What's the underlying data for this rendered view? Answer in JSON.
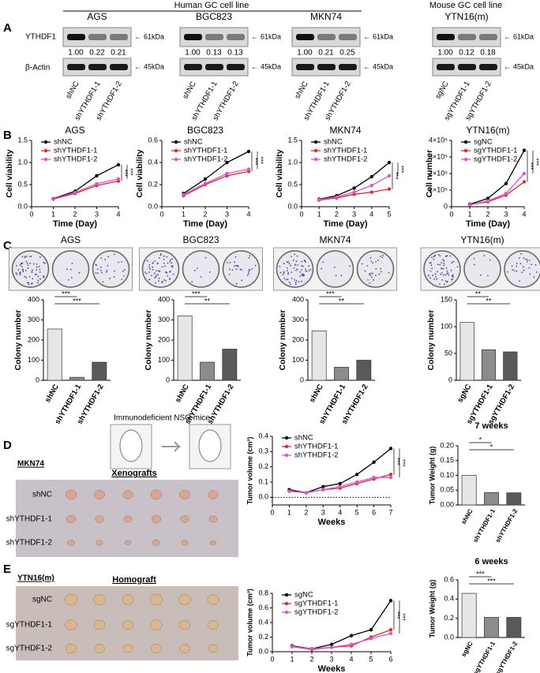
{
  "panel_letters": [
    "A",
    "B",
    "C",
    "D",
    "E"
  ],
  "blots": {
    "human_header": "Human GC cell line",
    "mouse_header": "Mouse GC cell line",
    "row_labels": [
      "YTHDF1",
      "β-Actin"
    ],
    "markers": [
      "61kDa",
      "45kDa"
    ],
    "groups": [
      {
        "name": "AGS",
        "lanes": [
          "shNC",
          "shYTHDF1-1",
          "shYTHDF1-2"
        ],
        "ratios": [
          "1.00",
          "0.22",
          "0.21"
        ]
      },
      {
        "name": "BGC823",
        "lanes": [
          "shNC",
          "shYTHDF1-1",
          "shYTHDF1-2"
        ],
        "ratios": [
          "1.00",
          "0.13",
          "0.13"
        ]
      },
      {
        "name": "MKN74",
        "lanes": [
          "shNC",
          "shYTHDF1-1",
          "shYTHDF1-2"
        ],
        "ratios": [
          "1.00",
          "0.21",
          "0.25"
        ]
      },
      {
        "name": "YTN16(m)",
        "lanes": [
          "sgNC",
          "sgYTHDF1-1",
          "sgYTHDF1-2"
        ],
        "ratios": [
          "1.00",
          "0.12",
          "0.18"
        ]
      }
    ]
  },
  "xenograft": {
    "mice_label": "Immunodeficient NSG mice",
    "cell_line": "MKN74",
    "title": "Xenografts",
    "rows": [
      "shNC",
      "shYTHDF1-1",
      "shYTHDF1-2"
    ]
  },
  "homograft": {
    "cell_line": "YTN16(m)",
    "title": "Homograft",
    "rows": [
      "sgNC",
      "sgYTHDF1-1",
      "sgYTHDF1-2"
    ]
  },
  "chart_data": [
    {
      "type": "line",
      "title": "AGS",
      "ylabel": "Cell viability",
      "xlabel": "Time (Day)",
      "x": [
        1,
        2,
        3,
        4
      ],
      "xlim": [
        0,
        4
      ],
      "xticks": [
        0,
        1,
        2,
        3,
        4
      ],
      "ylim": [
        0,
        1.5
      ],
      "yticks": [
        {
          "value": 0,
          "label": "0.0"
        },
        {
          "value": 0.5,
          "label": "0.5"
        },
        {
          "value": 1,
          "label": "1.0"
        },
        {
          "value": 1.5,
          "label": "1.5"
        }
      ],
      "series": [
        {
          "name": "shNC",
          "color": "#000000",
          "values": [
            0.18,
            0.35,
            0.7,
            0.95
          ]
        },
        {
          "name": "shYTHDF1-1",
          "color": "#e8282b",
          "values": [
            0.17,
            0.3,
            0.48,
            0.58
          ]
        },
        {
          "name": "shYTHDF1-2",
          "color": "#e34fd6",
          "values": [
            0.17,
            0.32,
            0.52,
            0.63
          ]
        }
      ],
      "annotations": [
        "***",
        "***"
      ]
    },
    {
      "type": "line",
      "title": "BGC823",
      "ylabel": "Cell viability",
      "xlabel": "Time (Day)",
      "x": [
        1,
        2,
        3,
        4
      ],
      "xlim": [
        0,
        4
      ],
      "xticks": [
        0,
        1,
        2,
        3,
        4
      ],
      "ylim": [
        0,
        0.6
      ],
      "yticks": [
        {
          "value": 0,
          "label": "0.0"
        },
        {
          "value": 0.2,
          "label": "0.2"
        },
        {
          "value": 0.4,
          "label": "0.4"
        },
        {
          "value": 0.6,
          "label": "0.6"
        }
      ],
      "series": [
        {
          "name": "shNC",
          "color": "#000000",
          "values": [
            0.12,
            0.25,
            0.4,
            0.5
          ]
        },
        {
          "name": "shYTHDF1-1",
          "color": "#e8282b",
          "values": [
            0.1,
            0.2,
            0.28,
            0.32
          ]
        },
        {
          "name": "shYTHDF1-2",
          "color": "#e34fd6",
          "values": [
            0.11,
            0.21,
            0.3,
            0.34
          ]
        }
      ],
      "annotations": [
        "***",
        "***"
      ]
    },
    {
      "type": "line",
      "title": "MKN74",
      "ylabel": "Cell viability",
      "xlabel": "Time (Day)",
      "x": [
        1,
        2,
        3,
        4,
        5
      ],
      "xlim": [
        0,
        5
      ],
      "xticks": [
        0,
        1,
        2,
        3,
        4,
        5
      ],
      "ylim": [
        0,
        1.5
      ],
      "yticks": [
        {
          "value": 0,
          "label": "0.0"
        },
        {
          "value": 0.5,
          "label": "0.5"
        },
        {
          "value": 1,
          "label": "1.0"
        },
        {
          "value": 1.5,
          "label": "1.5"
        }
      ],
      "series": [
        {
          "name": "shNC",
          "color": "#000000",
          "values": [
            0.17,
            0.25,
            0.42,
            0.68,
            1.0
          ]
        },
        {
          "name": "shYTHDF1-1",
          "color": "#e8282b",
          "values": [
            0.15,
            0.2,
            0.28,
            0.33,
            0.4
          ]
        },
        {
          "name": "shYTHDF1-2",
          "color": "#e34fd6",
          "values": [
            0.16,
            0.22,
            0.33,
            0.48,
            0.7
          ]
        }
      ],
      "annotations": [
        "***",
        "***"
      ]
    },
    {
      "type": "line",
      "title": "YTN16(m)",
      "ylabel": "Cell number",
      "xlabel": "Time (Day)",
      "x": [
        1,
        2,
        3,
        4
      ],
      "xlim": [
        0,
        4
      ],
      "xticks": [
        0,
        1,
        2,
        3,
        4
      ],
      "ylim": [
        0,
        400000
      ],
      "yticks": [
        0,
        {
          "value": 100000,
          "label": "1×10⁵"
        },
        {
          "value": 200000,
          "label": "2×10⁵"
        },
        {
          "value": 300000,
          "label": "3×10⁵"
        },
        {
          "value": 400000,
          "label": "4×10⁵"
        }
      ],
      "series": [
        {
          "name": "sgNC",
          "color": "#000000",
          "values": [
            15000,
            50000,
            140000,
            340000
          ]
        },
        {
          "name": "sgYTHDF1-1",
          "color": "#e8282b",
          "values": [
            12000,
            30000,
            70000,
            150000
          ]
        },
        {
          "name": "sgYTHDF1-2",
          "color": "#e34fd6",
          "values": [
            12000,
            35000,
            80000,
            200000
          ]
        }
      ],
      "annotations": [
        "***",
        "***"
      ]
    },
    {
      "type": "bar",
      "title": "AGS",
      "ylabel": "Colony number",
      "categories": [
        "shNC",
        "shYTHDF1-1",
        "shYTHDF1-2"
      ],
      "values": [
        255,
        15,
        90
      ],
      "colors": [
        "#e6e6e6",
        "#8c8c8c",
        "#5a5a5a"
      ],
      "ylim": [
        0,
        400
      ],
      "yticks": [
        0,
        100,
        200,
        300,
        400
      ],
      "annotations": [
        "***",
        "***"
      ]
    },
    {
      "type": "bar",
      "title": "BGC823",
      "ylabel": "Colony number",
      "categories": [
        "shNC",
        "shYTHDF1-1",
        "shYTHDF1-2"
      ],
      "values": [
        320,
        90,
        155
      ],
      "colors": [
        "#e6e6e6",
        "#8c8c8c",
        "#5a5a5a"
      ],
      "ylim": [
        0,
        400
      ],
      "yticks": [
        0,
        100,
        200,
        300,
        400
      ],
      "annotations": [
        "***",
        "**"
      ]
    },
    {
      "type": "bar",
      "title": "MKN74",
      "ylabel": "Colony number",
      "categories": [
        "shNC",
        "shYTHDF1-1",
        "shYTHDF1-2"
      ],
      "values": [
        245,
        65,
        100
      ],
      "colors": [
        "#e6e6e6",
        "#8c8c8c",
        "#5a5a5a"
      ],
      "ylim": [
        0,
        400
      ],
      "yticks": [
        0,
        100,
        200,
        300,
        400
      ],
      "annotations": [
        "***",
        "**"
      ]
    },
    {
      "type": "bar",
      "title": "YTN16(m)",
      "ylabel": "Colony number",
      "categories": [
        "sgNC",
        "sgYTHDF1-1",
        "sgYTHDF1-2"
      ],
      "values": [
        108,
        57,
        53
      ],
      "colors": [
        "#e6e6e6",
        "#8c8c8c",
        "#5a5a5a"
      ],
      "ylim": [
        0,
        150
      ],
      "yticks": [
        0,
        50,
        100,
        150
      ],
      "annotations": [
        "**",
        "**"
      ]
    },
    {
      "type": "line",
      "ylabel": "Tumor volume (cm³)",
      "xlabel": "Weeks",
      "x": [
        1,
        2,
        3,
        4,
        5,
        6,
        7
      ],
      "xlim": [
        0,
        7
      ],
      "xticks": [
        0,
        1,
        2,
        3,
        4,
        5,
        6,
        7
      ],
      "ylim": [
        -0.05,
        0.4
      ],
      "yticks": [
        {
          "value": 0,
          "label": "0.0"
        },
        {
          "value": 0.1,
          "label": "0.1"
        },
        {
          "value": 0.2,
          "label": "0.2"
        },
        {
          "value": 0.3,
          "label": "0.3"
        },
        {
          "value": 0.4,
          "label": "0.4"
        }
      ],
      "zero_line": true,
      "series": [
        {
          "name": "shNC",
          "color": "#000000",
          "values": [
            0.05,
            0.03,
            0.07,
            0.09,
            0.15,
            0.23,
            0.32
          ]
        },
        {
          "name": "shYTHDF1-1",
          "color": "#e8282b",
          "values": [
            0.04,
            0.03,
            0.05,
            0.06,
            0.09,
            0.12,
            0.15
          ]
        },
        {
          "name": "shYTHDF1-2",
          "color": "#e34fd6",
          "values": [
            0.04,
            0.03,
            0.05,
            0.07,
            0.1,
            0.13,
            0.13
          ]
        }
      ],
      "annotations": [
        "***",
        "***"
      ]
    },
    {
      "type": "bar",
      "title": "7 weeks",
      "ylabel": "Tumor Weight (g)",
      "categories": [
        "shNC",
        "shYTHDF1-1",
        "shYTHDF1-2"
      ],
      "values": [
        0.1,
        0.042,
        0.041
      ],
      "colors": [
        "#e6e6e6",
        "#8c8c8c",
        "#5a5a5a"
      ],
      "ylim": [
        0,
        0.2
      ],
      "yticks": [
        {
          "value": 0,
          "label": "0.00"
        },
        {
          "value": 0.05,
          "label": "0.05"
        },
        {
          "value": 0.1,
          "label": "0.10"
        },
        {
          "value": 0.15,
          "label": "0.15"
        },
        {
          "value": 0.2,
          "label": "0.20"
        }
      ],
      "annotations": [
        "*",
        "*"
      ]
    },
    {
      "type": "line",
      "ylabel": "Tumor volume (cm³)",
      "xlabel": "Weeks",
      "x": [
        1,
        2,
        3,
        4,
        5,
        6
      ],
      "xlim": [
        0,
        6
      ],
      "xticks": [
        0,
        1,
        2,
        3,
        4,
        5,
        6
      ],
      "ylim": [
        0,
        0.8
      ],
      "yticks": [
        {
          "value": 0,
          "label": "0.0"
        },
        {
          "value": 0.2,
          "label": "0.2"
        },
        {
          "value": 0.4,
          "label": "0.4"
        },
        {
          "value": 0.6,
          "label": "0.6"
        },
        {
          "value": 0.8,
          "label": "0.8"
        }
      ],
      "series": [
        {
          "name": "sgNC",
          "color": "#000000",
          "values": [
            0.08,
            0.04,
            0.1,
            0.22,
            0.3,
            0.7
          ]
        },
        {
          "name": "sgYTHDF1-1",
          "color": "#e8282b",
          "values": [
            0.07,
            0.03,
            0.06,
            0.08,
            0.2,
            0.3
          ]
        },
        {
          "name": "sgYTHDF1-2",
          "color": "#e34fd6",
          "values": [
            0.07,
            0.04,
            0.06,
            0.1,
            0.18,
            0.25
          ]
        }
      ],
      "annotations": [
        "***",
        "***"
      ]
    },
    {
      "type": "bar",
      "title": "6 weeks",
      "ylabel": "Tumor Weight (g)",
      "categories": [
        "sgNC",
        "sgYTHDF1-1",
        "sgYTHDF1-2"
      ],
      "values": [
        0.46,
        0.21,
        0.21
      ],
      "colors": [
        "#e6e6e6",
        "#8c8c8c",
        "#5a5a5a"
      ],
      "ylim": [
        0,
        0.6
      ],
      "yticks": [
        {
          "value": 0,
          "label": "0.0"
        },
        {
          "value": 0.2,
          "label": "0.2"
        },
        {
          "value": 0.4,
          "label": "0.4"
        },
        {
          "value": 0.6,
          "label": "0.6"
        }
      ],
      "annotations": [
        "***",
        "***"
      ]
    }
  ]
}
